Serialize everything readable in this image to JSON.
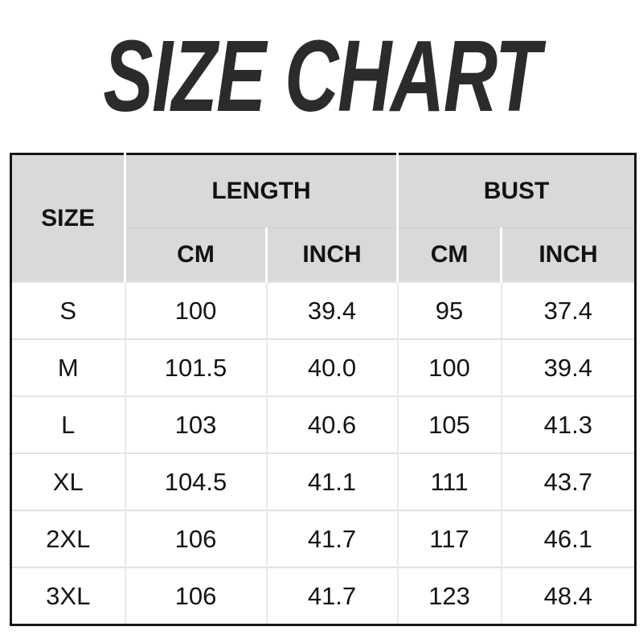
{
  "page": {
    "title": "SIZE CHART"
  },
  "colors": {
    "background": "#ffffff",
    "title_text": "#2b2b2b",
    "table_border": "#161616",
    "header_bg": "#d9d9d9",
    "header_divider": "#ffffff",
    "grid_line": "#e2e2e2",
    "cell_text": "#141414"
  },
  "chart_data": {
    "type": "table",
    "title": "SIZE CHART",
    "column_groups": [
      "SIZE",
      "LENGTH",
      "BUST"
    ],
    "subcolumns": [
      "CM",
      "INCH",
      "CM",
      "INCH"
    ],
    "columns": [
      "SIZE",
      "LENGTH CM",
      "LENGTH INCH",
      "BUST CM",
      "BUST INCH"
    ],
    "rows": [
      {
        "size": "S",
        "length_cm": "100",
        "length_inch": "39.4",
        "bust_cm": "95",
        "bust_inch": "37.4"
      },
      {
        "size": "M",
        "length_cm": "101.5",
        "length_inch": "40.0",
        "bust_cm": "100",
        "bust_inch": "39.4"
      },
      {
        "size": "L",
        "length_cm": "103",
        "length_inch": "40.6",
        "bust_cm": "105",
        "bust_inch": "41.3"
      },
      {
        "size": "XL",
        "length_cm": "104.5",
        "length_inch": "41.1",
        "bust_cm": "111",
        "bust_inch": "43.7"
      },
      {
        "size": "2XL",
        "length_cm": "106",
        "length_inch": "41.7",
        "bust_cm": "117",
        "bust_inch": "46.1"
      },
      {
        "size": "3XL",
        "length_cm": "106",
        "length_inch": "41.7",
        "bust_cm": "123",
        "bust_inch": "48.4"
      }
    ]
  }
}
